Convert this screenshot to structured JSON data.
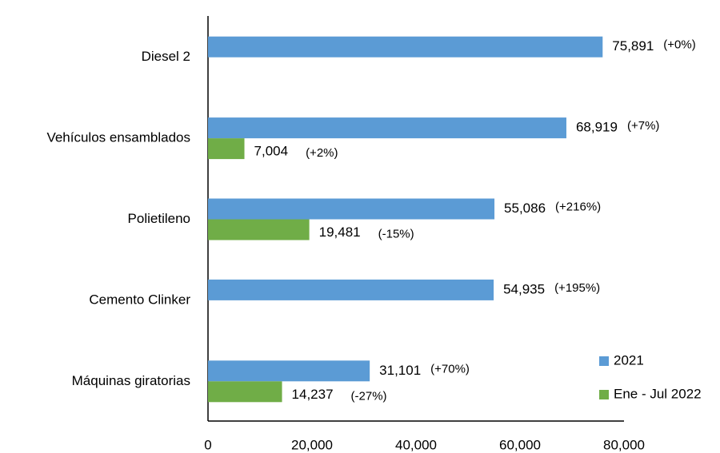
{
  "chart_data": {
    "type": "hbar",
    "categories": [
      "Diesel 2",
      "Vehículos ensamblados",
      "Polietileno",
      "Cemento Clinker",
      "Máquinas giratorias"
    ],
    "series": [
      {
        "name": "2021",
        "color": "#5b9bd5",
        "values": [
          75891,
          68919,
          55086,
          54935,
          31101
        ],
        "value_labels": [
          "75,891",
          "68,919",
          "55,086",
          "54,935",
          "31,101"
        ],
        "change_labels": [
          "(+0%)",
          "(+7%)",
          "(+216%)",
          "(+195%)",
          "(+70%)"
        ]
      },
      {
        "name": "Ene - Jul 2022",
        "color": "#70ad47",
        "values": [
          null,
          7004,
          19481,
          null,
          14237
        ],
        "value_labels": [
          null,
          "7,004",
          "19,481",
          null,
          "14,237"
        ],
        "change_labels": [
          null,
          "(+2%)",
          "(-15%)",
          null,
          "(-27%)"
        ]
      }
    ],
    "xlim": [
      0,
      80000
    ],
    "xticks": [
      0,
      {
        "value": 20000,
        "label": "20,000"
      },
      {
        "value": 40000,
        "label": "40,000"
      },
      {
        "value": 60000,
        "label": "60,000"
      },
      {
        "value": 80000,
        "label": "80,000"
      }
    ],
    "legend": "bottom-right"
  }
}
